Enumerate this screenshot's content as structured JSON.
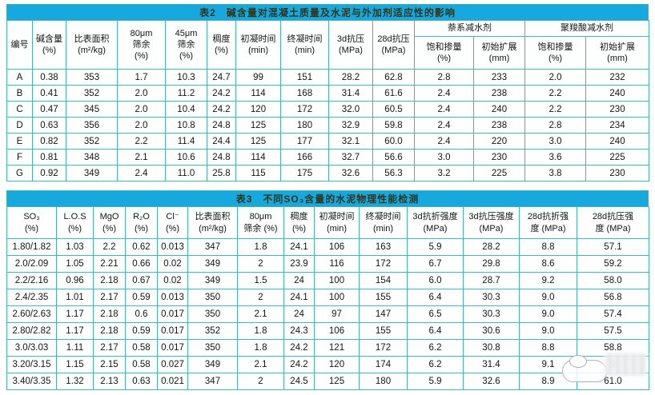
{
  "colors": {
    "title_bar_bg": "#17a9dd",
    "title_text": "#33331a",
    "grid_border": "#45b2b4",
    "cell_bg": "#fdfefe",
    "cell_text": "#141414"
  },
  "table2": {
    "title": "表2　碱含量对混凝土质量及水泥与外加剂适应性的影响",
    "simple_headers": [
      "编号",
      "碱含量\n(%)",
      "比表面积\n(m²/kg)",
      "80μm\n筛余\n(%)",
      "45μm\n筛余\n(%)",
      "稠度\n(%)",
      "初凝时间\n(min)",
      "终凝时间\n(min)",
      "3d抗压\n(MPa)",
      "28d抗压\n(MPa)"
    ],
    "groups": [
      {
        "label": "萘系减水剂",
        "sub": [
          "饱和掺量\n(%)",
          "初始扩展\n(mm)"
        ]
      },
      {
        "label": "聚羧酸减水剂",
        "sub": [
          "饱和掺量\n(%)",
          "初始扩展\n(mm)"
        ]
      }
    ],
    "rows": [
      [
        "A",
        "0.38",
        "353",
        "1.7",
        "10.3",
        "24.7",
        "99",
        "151",
        "28.2",
        "62.8",
        "2.8",
        "233",
        "2.0",
        "232"
      ],
      [
        "B",
        "0.41",
        "352",
        "2.0",
        "11.2",
        "24.2",
        "114",
        "168",
        "31.4",
        "61.6",
        "2.4",
        "238",
        "2.2",
        "240"
      ],
      [
        "C",
        "0.47",
        "345",
        "2.0",
        "10.4",
        "24.2",
        "120",
        "172",
        "32.0",
        "60.5",
        "2.4",
        "240",
        "2.2",
        "230"
      ],
      [
        "D",
        "0.63",
        "356",
        "2.0",
        "10.8",
        "24.8",
        "125",
        "180",
        "32.9",
        "59.8",
        "2.4",
        "238",
        "2.8",
        "234"
      ],
      [
        "E",
        "0.82",
        "352",
        "2.2",
        "11.4",
        "24.4",
        "125",
        "177",
        "32.1",
        "60.0",
        "2.4",
        "220",
        "3.0",
        "240"
      ],
      [
        "F",
        "0.81",
        "348",
        "2.1",
        "10.6",
        "24.8",
        "114",
        "166",
        "32.7",
        "56.6",
        "3.0",
        "230",
        "3.6",
        "225"
      ],
      [
        "G",
        "0.92",
        "349",
        "2.4",
        "11.0",
        "25.8",
        "115",
        "175",
        "32.6",
        "56.3",
        "3.2",
        "225",
        "3.8",
        "230"
      ]
    ]
  },
  "table3": {
    "title": "表3　不同SO₃含量的水泥物理性能检测",
    "headers": [
      "SO₃\n(%)",
      "L.O.S\n(%)",
      "MgO\n(%)",
      "R₂O\n(%)",
      "Cl⁻\n(%)",
      "比表面积\n(m²/kg)",
      "80μm\n筛余 (%)",
      "稠度\n(%)",
      "初凝时间\n(min)",
      "终凝时间\n(min)",
      "3d抗折强度\n(MPa)",
      "3d抗压强度\n(MPa)",
      "28d抗折强\n度 (MPa)",
      "28d抗压强\n度 (MPa)"
    ],
    "rows": [
      [
        "1.80/1.82",
        "1.03",
        "2.2",
        "0.62",
        "0.013",
        "347",
        "1.8",
        "24.1",
        "106",
        "163",
        "5.9",
        "28.2",
        "8.8",
        "57.1"
      ],
      [
        "2.0/2.09",
        "1.05",
        "2.21",
        "0.66",
        "0.02",
        "349",
        "2",
        "23.9",
        "116",
        "172",
        "6.7",
        "29.8",
        "8.6",
        "59.2"
      ],
      [
        "2.2/2.16",
        "0.96",
        "2.18",
        "0.67",
        "0.02",
        "349",
        "1.5",
        "24",
        "100",
        "154",
        "6.0",
        "28.7",
        "9.2",
        "58.0"
      ],
      [
        "2.4/2.35",
        "1.01",
        "2.17",
        "0.59",
        "0.013",
        "350",
        "2",
        "24.1",
        "100",
        "155",
        "6.4",
        "30.3",
        "9.0",
        "56.8"
      ],
      [
        "2.60/2.63",
        "1.17",
        "2.18",
        "0.6",
        "0.017",
        "350",
        "2.1",
        "24",
        "97",
        "147",
        "6.5",
        "30.3",
        "9.0",
        "57.4"
      ],
      [
        "2.80/2.82",
        "1.17",
        "2.18",
        "0.59",
        "0.017",
        "352",
        "1.8",
        "24.3",
        "106",
        "155",
        "6.4",
        "30.6",
        "9.0",
        "57.5"
      ],
      [
        "3.0/3.03",
        "1.11",
        "2.17",
        "0.58",
        "0.017",
        "350",
        "1.8",
        "24.2",
        "121",
        "172",
        "6.2",
        "30.8",
        "8.8",
        "58.8"
      ],
      [
        "3.20/3.15",
        "1.15",
        "2.15",
        "0.58",
        "0.027",
        "349",
        "2.1",
        "24.2",
        "120",
        "174",
        "6.2",
        "31.4",
        "9.1",
        "9"
      ],
      [
        "3.40/3.35",
        "1.32",
        "2.13",
        "0.63",
        "0.021",
        "347",
        "2",
        "24.5",
        "125",
        "180",
        "5.9",
        "32.6",
        "8.9",
        "61.0"
      ]
    ],
    "note": "row 8 last value partially hidden by watermark"
  }
}
